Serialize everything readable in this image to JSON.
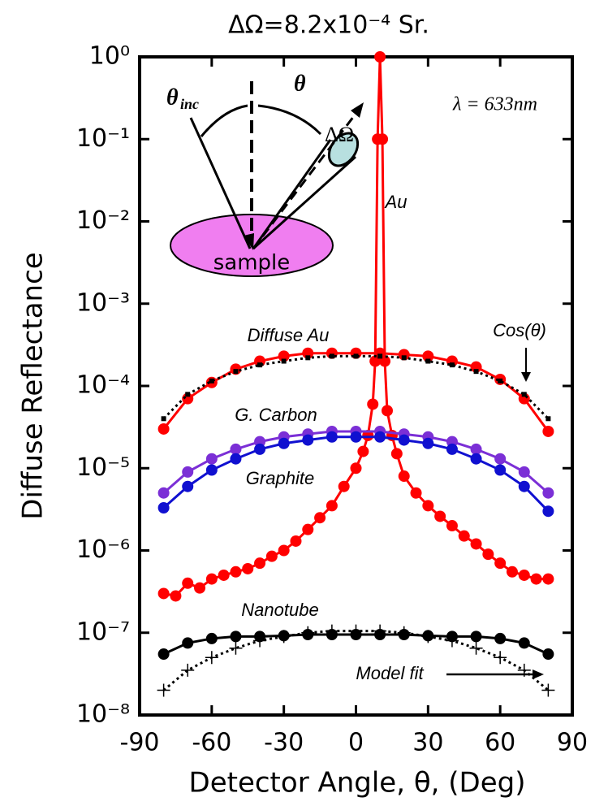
{
  "chart_data": {
    "type": "line",
    "title": "ΔΩ=8.2x10⁻⁴ Sr.",
    "xlabel": "Detector Angle, θ, (Deg)",
    "ylabel": "Diffuse Reflectance",
    "xlim": [
      -90,
      90
    ],
    "xticks": [
      -90,
      -60,
      -30,
      0,
      30,
      60,
      90
    ],
    "ylim": [
      1e-08,
      1
    ],
    "log_y": true,
    "yticks": [
      {
        "value": 1e-08,
        "label": "10⁻⁸"
      },
      {
        "value": 1e-07,
        "label": "10⁻⁷"
      },
      {
        "value": 1e-06,
        "label": "10⁻⁶"
      },
      {
        "value": 1e-05,
        "label": "10⁻⁵"
      },
      {
        "value": 0.0001,
        "label": "10⁻⁴"
      },
      {
        "value": 0.001,
        "label": "10⁻³"
      },
      {
        "value": 0.01,
        "label": "10⁻²"
      },
      {
        "value": 0.1,
        "label": "10⁻¹"
      },
      {
        "value": 1,
        "label": "10⁰"
      }
    ],
    "annotation": "λ = 633nm",
    "inset": {
      "incident_symbol": "θ",
      "incident_subscript": "inc",
      "detector_symbol": "θ",
      "solid_angle": "ΔΩ",
      "sample": "sample"
    },
    "series": [
      {
        "name": "Au",
        "color": "#ff0000",
        "marker": "circle",
        "line_style": "solid",
        "x": [
          -80,
          -75,
          -70,
          -65,
          -60,
          -55,
          -50,
          -45,
          -40,
          -35,
          -30,
          -25,
          -20,
          -15,
          -10,
          -5,
          0,
          3,
          5,
          7,
          8,
          9,
          10,
          11,
          12,
          13,
          15,
          17,
          20,
          25,
          30,
          35,
          40,
          45,
          50,
          55,
          60,
          65,
          70,
          75,
          80
        ],
        "values": [
          3e-07,
          2.8e-07,
          4e-07,
          3.5e-07,
          4.5e-07,
          5e-07,
          5.5e-07,
          6e-07,
          7e-07,
          8.5e-07,
          1e-06,
          1.3e-06,
          1.8e-06,
          2.5e-06,
          3.5e-06,
          6e-06,
          1e-05,
          1.6e-05,
          2.5e-05,
          6e-05,
          0.0002,
          0.1,
          1,
          0.1,
          0.0002,
          5e-05,
          2.5e-05,
          1.5e-05,
          8e-06,
          5e-06,
          3.5e-06,
          2.6e-06,
          2e-06,
          1.5e-06,
          1.2e-06,
          9e-07,
          7e-07,
          5.5e-07,
          5e-07,
          4.5e-07,
          4.5e-07
        ]
      },
      {
        "name": "Diffuse Au",
        "color": "#ff0000",
        "marker": "circle",
        "line_style": "solid",
        "x": [
          -80,
          -70,
          -60,
          -50,
          -40,
          -30,
          -20,
          -10,
          0,
          10,
          20,
          30,
          40,
          50,
          60,
          70,
          80
        ],
        "values": [
          3e-05,
          7e-05,
          0.00011,
          0.00016,
          0.0002,
          0.00023,
          0.00025,
          0.00025,
          0.00025,
          0.00025,
          0.00024,
          0.00023,
          0.0002,
          0.00017,
          0.00012,
          7e-05,
          2.8e-05
        ]
      },
      {
        "name": "Cos(θ)",
        "color": "#000000",
        "marker": "square",
        "line_style": "dotted",
        "x": [
          -80,
          -70,
          -60,
          -50,
          -40,
          -30,
          -20,
          -10,
          0,
          10,
          20,
          30,
          40,
          50,
          60,
          70,
          80
        ],
        "values": [
          4e-05,
          7.9e-05,
          0.000115,
          0.00015,
          0.00018,
          0.0002,
          0.00022,
          0.00023,
          0.00023,
          0.00023,
          0.00022,
          0.0002,
          0.00018,
          0.00015,
          0.000115,
          7.9e-05,
          4e-05
        ]
      },
      {
        "name": "G. Carbon",
        "color": "#7b2fd6",
        "marker": "circle",
        "line_style": "solid",
        "x": [
          -80,
          -70,
          -60,
          -50,
          -40,
          -30,
          -20,
          -10,
          0,
          10,
          20,
          30,
          40,
          50,
          60,
          70,
          80
        ],
        "values": [
          5e-06,
          9e-06,
          1.3e-05,
          1.7e-05,
          2.1e-05,
          2.4e-05,
          2.6e-05,
          2.8e-05,
          2.8e-05,
          2.8e-05,
          2.6e-05,
          2.4e-05,
          2.1e-05,
          1.7e-05,
          1.3e-05,
          9e-06,
          5e-06
        ]
      },
      {
        "name": "Graphite",
        "color": "#1010d0",
        "marker": "circle",
        "line_style": "solid",
        "x": [
          -80,
          -70,
          -60,
          -50,
          -40,
          -30,
          -20,
          -10,
          0,
          10,
          20,
          30,
          40,
          50,
          60,
          70,
          80
        ],
        "values": [
          3.3e-06,
          6e-06,
          9.5e-06,
          1.3e-05,
          1.7e-05,
          2e-05,
          2.2e-05,
          2.4e-05,
          2.4e-05,
          2.4e-05,
          2.2e-05,
          2e-05,
          1.7e-05,
          1.3e-05,
          9.5e-06,
          6e-06,
          3e-06
        ]
      },
      {
        "name": "Nanotube",
        "color": "#000000",
        "marker": "circle",
        "line_style": "solid",
        "x": [
          -80,
          -70,
          -60,
          -50,
          -40,
          -30,
          -20,
          -10,
          0,
          10,
          20,
          30,
          40,
          50,
          60,
          70,
          80
        ],
        "values": [
          5.5e-08,
          7.5e-08,
          8.5e-08,
          9e-08,
          9e-08,
          9.2e-08,
          9.5e-08,
          9.5e-08,
          9.5e-08,
          9.5e-08,
          9.5e-08,
          9.2e-08,
          9e-08,
          9e-08,
          8.5e-08,
          7.5e-08,
          5.5e-08
        ]
      },
      {
        "name": "Model fit",
        "color": "#000000",
        "marker": "cross",
        "line_style": "dotted",
        "x": [
          -80,
          -70,
          -60,
          -50,
          -40,
          -30,
          -20,
          -10,
          0,
          10,
          20,
          30,
          40,
          50,
          60,
          70,
          80
        ],
        "values": [
          2e-08,
          3.5e-08,
          5e-08,
          6.5e-08,
          8e-08,
          9e-08,
          1e-07,
          1.05e-07,
          1.05e-07,
          1.05e-07,
          1e-07,
          9e-08,
          8e-08,
          6.5e-08,
          5e-08,
          3.5e-08,
          2e-08
        ]
      }
    ]
  }
}
